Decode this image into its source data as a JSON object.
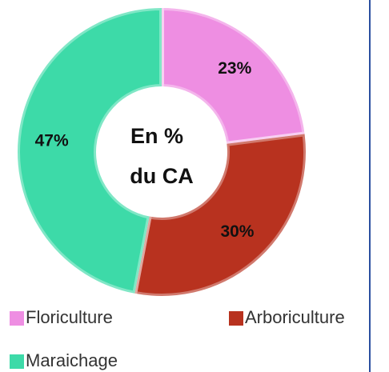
{
  "chart_data": {
    "type": "donut",
    "center_text": [
      "En %",
      "du CA"
    ],
    "categories": [
      "Floriculture",
      "Arboriculture",
      "Maraichage"
    ],
    "values": [
      23,
      30,
      47
    ],
    "value_labels": [
      "23%",
      "30%",
      "47%"
    ],
    "colors": [
      "#ee8ee2",
      "#b8321f",
      "#3ddaa8"
    ],
    "legend": "bottom"
  }
}
